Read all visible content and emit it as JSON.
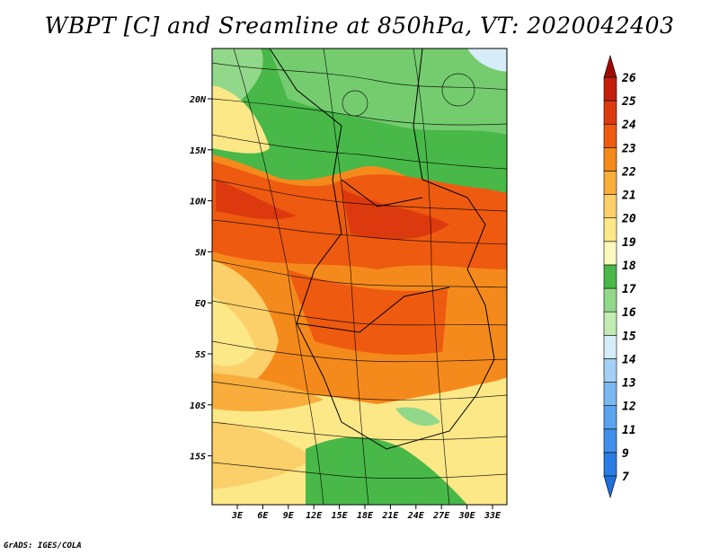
{
  "title": "WBPT [C] and Sreamline at 850hPa, VT: 2020042403",
  "credit": "GrADS: IGES/COLA",
  "map": {
    "lat_ticks": [
      "20N",
      "15N",
      "10N",
      "5N",
      "EQ",
      "5S",
      "10S",
      "15S"
    ],
    "lon_ticks": [
      "3E",
      "6E",
      "9E",
      "12E",
      "15E",
      "18E",
      "21E",
      "24E",
      "27E",
      "30E",
      "33E"
    ]
  },
  "colorbar": {
    "levels": [
      "7",
      "9",
      "11",
      "12",
      "13",
      "14",
      "15",
      "16",
      "17",
      "18",
      "19",
      "20",
      "21",
      "22",
      "23",
      "24",
      "25",
      "26"
    ],
    "colors": [
      "#1e6fd8",
      "#2a7ee3",
      "#3e90ea",
      "#5aa4ef",
      "#7ab8f2",
      "#a4d0f5",
      "#d6ecf8",
      "#c2ecb2",
      "#92d88a",
      "#48b848",
      "#fbf8c0",
      "#fde888",
      "#fbcf6a",
      "#f9ad3c",
      "#f58a1c",
      "#ee5a10",
      "#dc3a0e",
      "#c41e0a",
      "#9e0a06"
    ]
  }
}
